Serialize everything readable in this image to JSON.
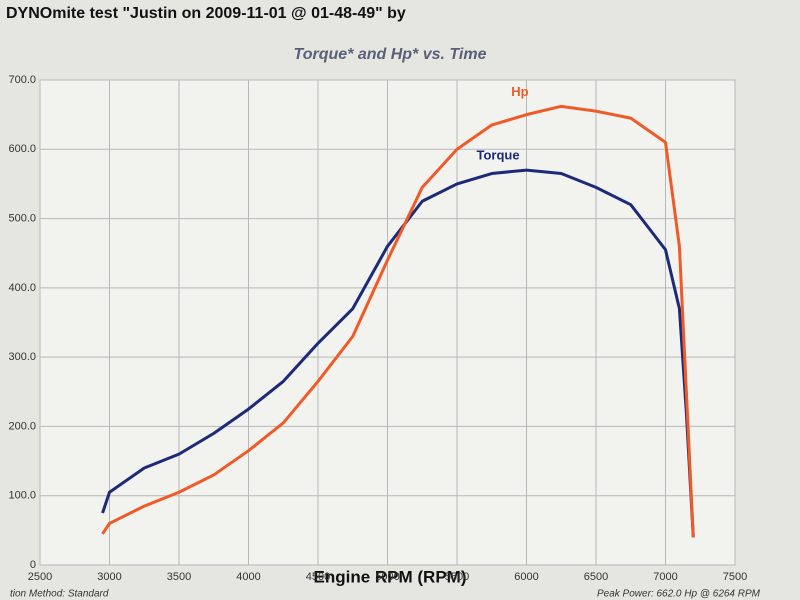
{
  "chart_data": {
    "type": "line",
    "header": "DYNOmite test \"Justin on 2009-11-01 @ 01-48-49\" by",
    "title": "Torque* and Hp* vs. Time",
    "x_label": "Engine RPM (RPM)",
    "footer_left": "tion Method: Standard",
    "footer_right": "Peak Power: 662.0 Hp @ 6264 RPM",
    "x": [
      2950,
      3000,
      3250,
      3500,
      3750,
      4000,
      4250,
      4500,
      4750,
      5000,
      5250,
      5500,
      5750,
      6000,
      6250,
      6500,
      6750,
      7000,
      7100,
      7150,
      7200
    ],
    "series": [
      {
        "name": "Torque",
        "color": "#1c2a78",
        "values": [
          75,
          105,
          140,
          160,
          190,
          225,
          265,
          320,
          370,
          460,
          525,
          550,
          565,
          570,
          565,
          545,
          520,
          455,
          370,
          220,
          40
        ]
      },
      {
        "name": "Hp",
        "color": "#f05a28",
        "values": [
          45,
          60,
          85,
          105,
          130,
          165,
          205,
          265,
          330,
          440,
          545,
          600,
          635,
          650,
          662,
          655,
          645,
          610,
          460,
          250,
          40
        ]
      }
    ],
    "xlim": [
      2500,
      7500
    ],
    "xticks": [
      2500,
      3000,
      3500,
      4000,
      4500,
      5000,
      5500,
      6000,
      6500,
      7000,
      7500
    ],
    "ylim": [
      0,
      700
    ],
    "yticks": [
      0,
      {
        "value": 100,
        "label": "100.0"
      },
      {
        "value": 200,
        "label": "200.0"
      },
      {
        "value": 300,
        "label": "300.0"
      },
      {
        "value": 400,
        "label": "400.0"
      },
      {
        "value": 500,
        "label": "500.0"
      },
      {
        "value": 600,
        "label": "600.0"
      },
      {
        "value": 700,
        "label": "700.0"
      }
    ],
    "grid": true
  }
}
